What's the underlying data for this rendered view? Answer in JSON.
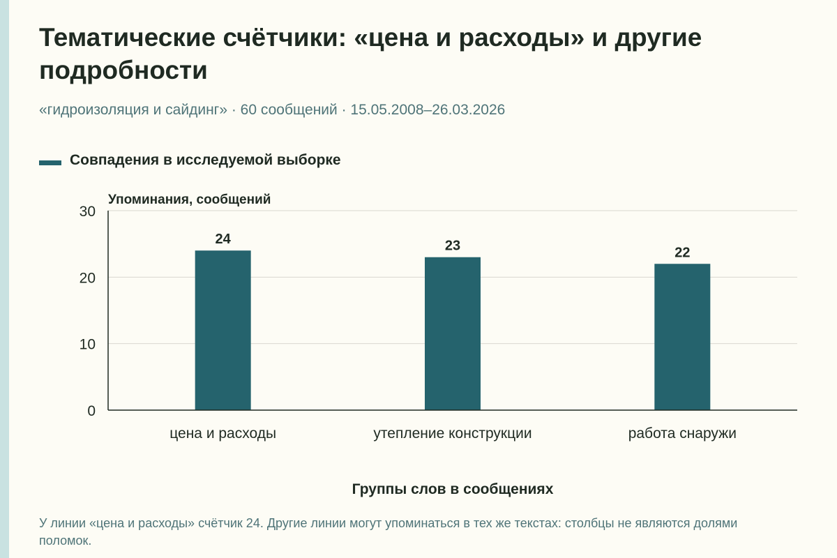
{
  "title": "Тематические счётчики: «цена и расходы» и другие подробности",
  "subtitle": "«гидроизоляция и сайдинг» · 60 сообщений · 15.05.2008–26.03.2026",
  "footnote": "У линии «цена и расходы» счётчик 24. Другие линии могут упоминаться в тех же текстах: столбцы не являются долями поломок.",
  "colors": {
    "bar": "#25636d",
    "grid": "#d9d8d0",
    "axis": "#1f2a22",
    "background": "#fdfcf5"
  },
  "chart_data": {
    "type": "bar",
    "categories": [
      "цена и расходы",
      "утепление конструкции",
      "работа снаружи"
    ],
    "series": [
      {
        "name": "Совпадения в исследуемой выборке",
        "values": [
          24,
          23,
          22
        ]
      }
    ],
    "data_labels": [
      "24",
      "23",
      "22"
    ],
    "ylabel": "Упоминания, сообщений",
    "xlabel": "Группы слов в сообщениях",
    "ylim": [
      0,
      30
    ],
    "yticks": [
      0,
      10,
      20,
      30
    ],
    "ytick_labels": [
      "0",
      "10",
      "20",
      "30"
    ],
    "grid": true,
    "legend_position": "top-left"
  }
}
